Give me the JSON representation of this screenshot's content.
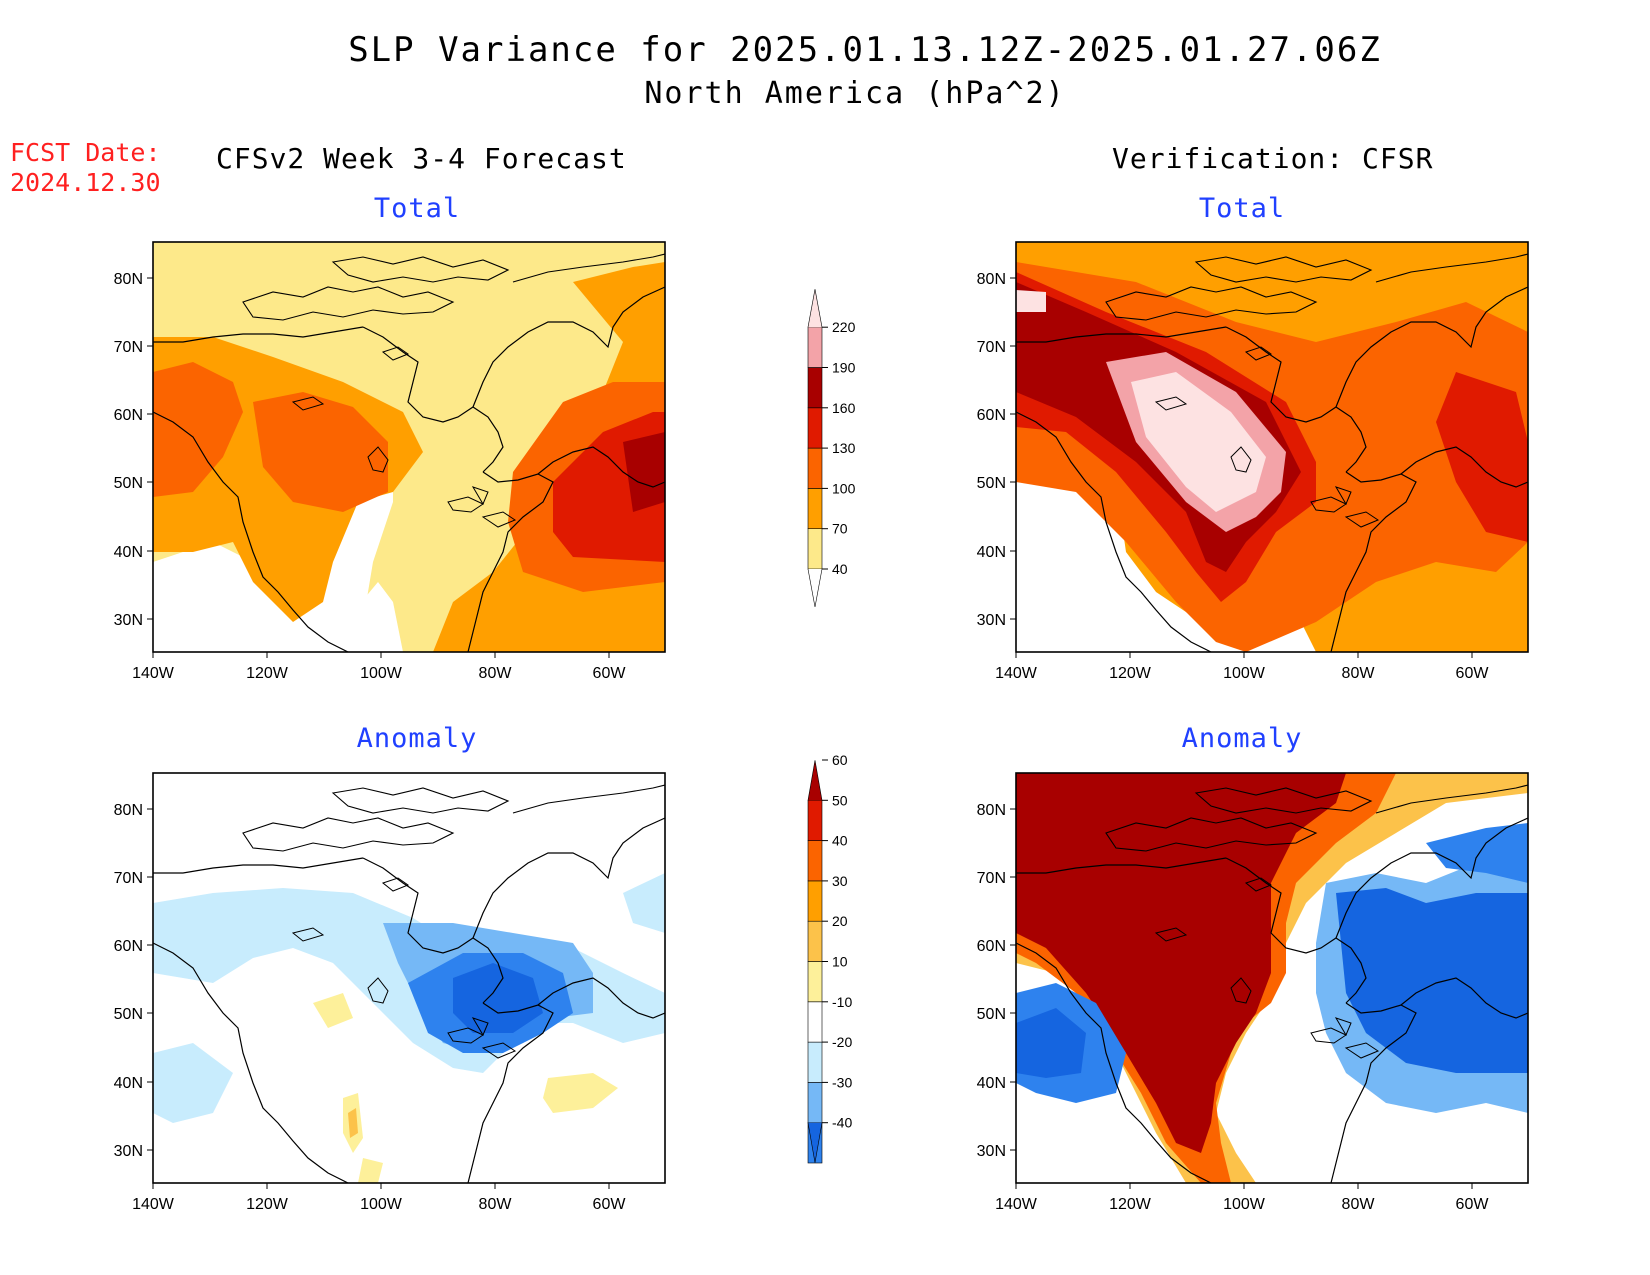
{
  "header": {
    "title": "SLP Variance for 2025.01.13.12Z-2025.01.27.06Z",
    "subtitle": "North America (hPa^2)",
    "fcst_label": "FCST Date:",
    "fcst_date": "2024.12.30"
  },
  "columns": {
    "left": "CFSv2 Week 3-4 Forecast",
    "right": "Verification: CFSR"
  },
  "panels": {
    "tl": "Total",
    "tr": "Total",
    "bl": "Anomaly",
    "br": "Anomaly"
  },
  "axes": {
    "lon_labels": [
      "140W",
      "120W",
      "100W",
      "80W",
      "60W"
    ],
    "lat_labels": [
      "80N",
      "70N",
      "60N",
      "50N",
      "40N",
      "30N"
    ]
  },
  "colorbars": {
    "total": {
      "levels": [
        "40",
        "70",
        "100",
        "130",
        "160",
        "190",
        "220"
      ],
      "colors": [
        "#fde98a",
        "#ff9f00",
        "#fb6400",
        "#e01a00",
        "#a80000",
        "#f3a3a8",
        "#fde2e2"
      ]
    },
    "anomaly": {
      "levels": [
        "-40",
        "-30",
        "-20",
        "-10",
        "10",
        "20",
        "30",
        "40",
        "50",
        "60"
      ],
      "colors": [
        "#1565e0",
        "#2e82ee",
        "#75b8f6",
        "#c8ecfd",
        "#ffffff",
        "#fdf09a",
        "#fcc24a",
        "#ff9f00",
        "#fb6400",
        "#e01a00",
        "#a80000"
      ]
    }
  }
}
